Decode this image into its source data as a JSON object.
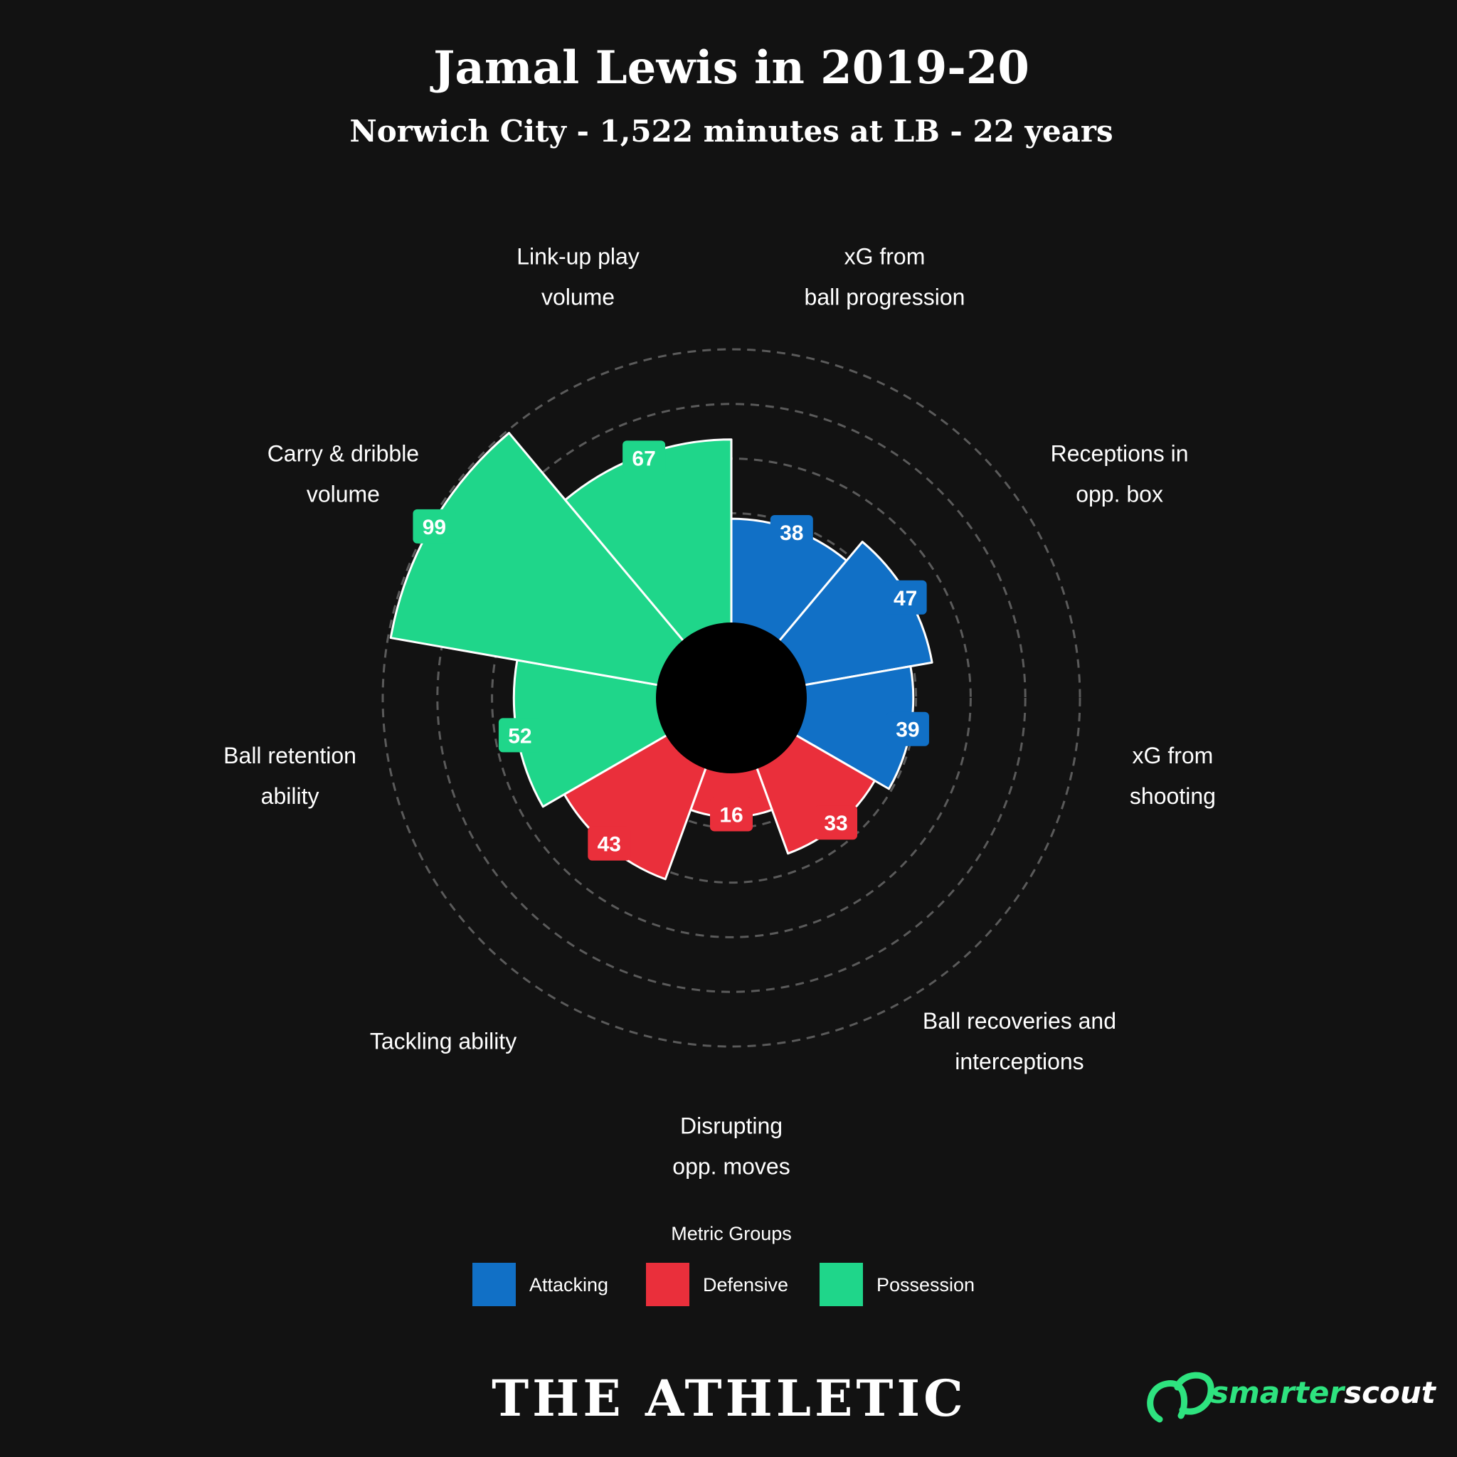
{
  "title": "Jamal Lewis in 2019-20",
  "subtitle": "Norwich City - 1,522 minutes at LB - 22 years",
  "chart_data": {
    "type": "polar-bar",
    "range": [
      0,
      100
    ],
    "gridlines_dashed": true,
    "metrics": [
      {
        "label": [
          "xG from",
          "ball progression"
        ],
        "value": 38,
        "group": "Attacking"
      },
      {
        "label": [
          "Receptions in",
          "opp. box"
        ],
        "value": 47,
        "group": "Attacking"
      },
      {
        "label": [
          "xG from",
          "shooting"
        ],
        "value": 39,
        "group": "Attacking"
      },
      {
        "label": [
          "Ball recoveries and",
          "interceptions"
        ],
        "value": 33,
        "group": "Defensive"
      },
      {
        "label": [
          "Disrupting",
          "opp. moves"
        ],
        "value": 16,
        "group": "Defensive"
      },
      {
        "label": [
          "Tackling ability"
        ],
        "value": 43,
        "group": "Defensive"
      },
      {
        "label": [
          "Ball retention",
          "ability"
        ],
        "value": 52,
        "group": "Possession"
      },
      {
        "label": [
          "Carry & dribble",
          "volume"
        ],
        "value": 99,
        "group": "Possession"
      },
      {
        "label": [
          "Link-up play",
          "volume"
        ],
        "value": 67,
        "group": "Possession"
      }
    ]
  },
  "legend": {
    "title": "Metric Groups",
    "items": [
      {
        "name": "Attacking",
        "color": "#1170c6"
      },
      {
        "name": "Defensive",
        "color": "#ea2f3b"
      },
      {
        "name": "Possession",
        "color": "#1fd68a"
      }
    ]
  },
  "branding": {
    "publisher": "THE ATHLETIC",
    "partner_prefix": "smarter",
    "partner_suffix": "scout",
    "partner_color": "#2ee37f"
  }
}
